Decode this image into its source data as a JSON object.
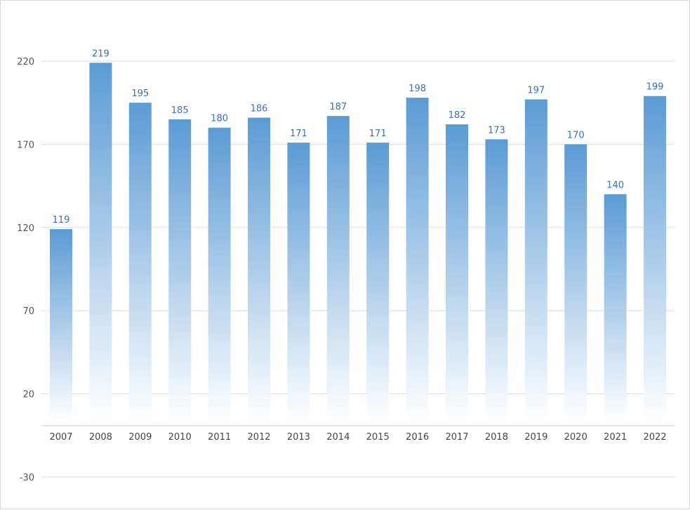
{
  "chart_data": {
    "type": "bar",
    "categories": [
      "2007",
      "2008",
      "2009",
      "2010",
      "2011",
      "2012",
      "2013",
      "2014",
      "2015",
      "2016",
      "2017",
      "2018",
      "2019",
      "2020",
      "2021",
      "2022"
    ],
    "values": [
      119,
      219,
      195,
      185,
      180,
      186,
      171,
      187,
      171,
      198,
      182,
      173,
      197,
      170,
      140,
      199
    ],
    "title": "",
    "xlabel": "",
    "ylabel": "",
    "ylim": [
      -30,
      220
    ],
    "yticks": [
      -30,
      20,
      70,
      120,
      170,
      220
    ],
    "grid": true,
    "legend": "none",
    "colors": {
      "bar_top": "#5b9bd5",
      "bar_bottom": "#ffffff",
      "data_label": "#3a6fb8",
      "grid": "#dddddd",
      "axis": "#cccccc"
    }
  }
}
